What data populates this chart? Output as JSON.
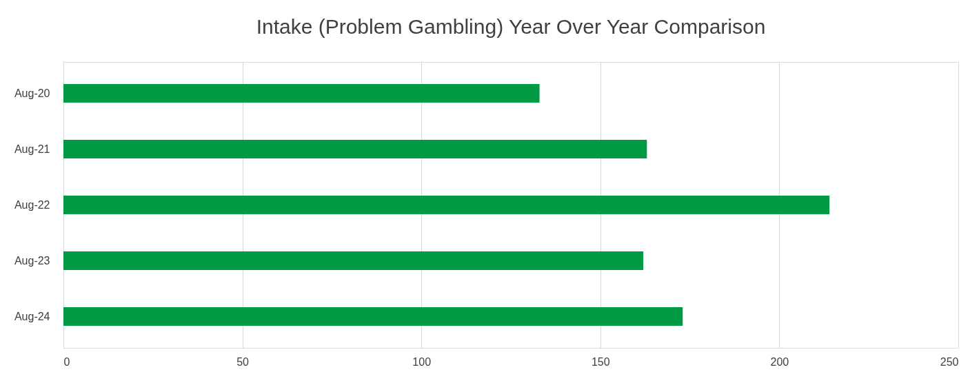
{
  "chart_data": {
    "type": "bar",
    "orientation": "horizontal",
    "title": "Intake (Problem Gambling) Year Over Year Comparison",
    "categories": [
      "Aug-20",
      "Aug-21",
      "Aug-22",
      "Aug-23",
      "Aug-24"
    ],
    "values": [
      133,
      163,
      214,
      162,
      173
    ],
    "color": "#009a44",
    "xlim": [
      0,
      250
    ],
    "xticks": [
      0,
      50,
      100,
      150,
      200,
      250
    ],
    "grid": "x"
  }
}
